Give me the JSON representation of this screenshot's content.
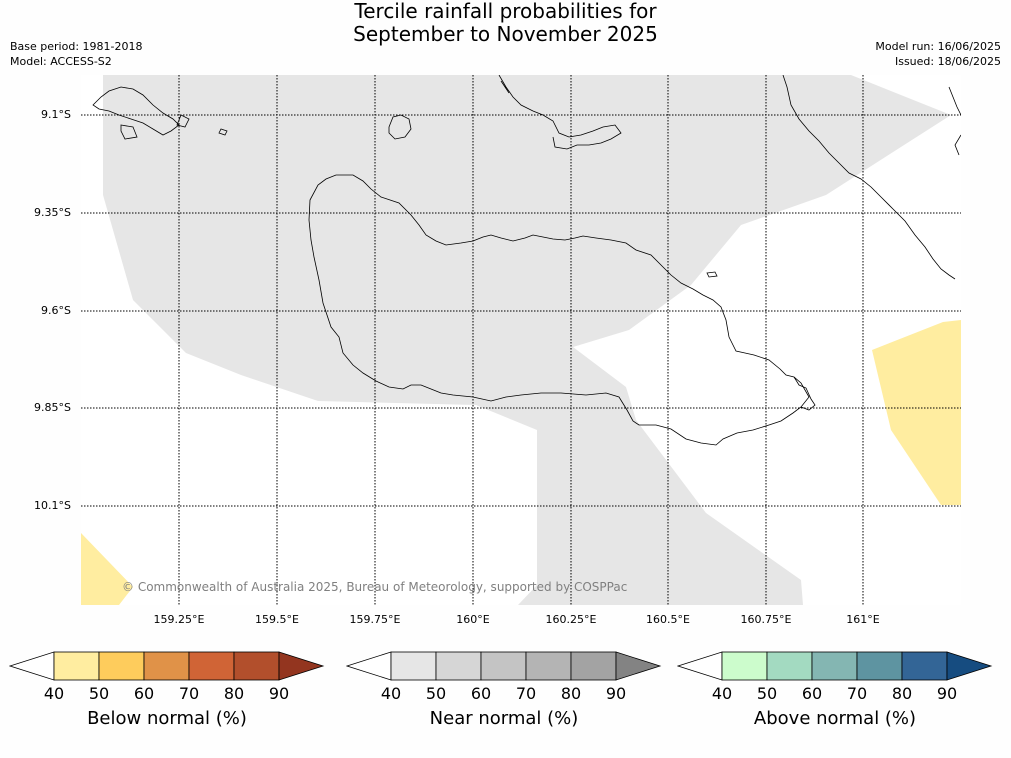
{
  "title": {
    "line1": "Tercile rainfall probabilities for",
    "line2": "September to November 2025"
  },
  "meta": {
    "base_period": "Base period: 1981-2018",
    "model": "Model: ACCESS-S2",
    "model_run": "Model run: 16/06/2025",
    "issued": "Issued: 18/06/2025"
  },
  "map": {
    "lat_labels": [
      "9.1°S",
      "9.35°S",
      "9.6°S",
      "9.85°S",
      "10.1°S"
    ],
    "lon_labels": [
      "159.25°E",
      "159.5°E",
      "159.75°E",
      "160°E",
      "160.25°E",
      "160.5°E",
      "160.75°E",
      "161°E"
    ],
    "copyright": "© Commonwealth of Australia 2025, Bureau of Meteorology, supported by COSPPac",
    "colors": {
      "near_normal_40_50": "#e6e6e6",
      "below_normal_40_50": "#ffeda0",
      "coastline": "#000000"
    }
  },
  "colorbars": [
    {
      "label": "Below normal (%)",
      "ticks": [
        "40",
        "50",
        "60",
        "70",
        "80",
        "90"
      ],
      "colors": [
        "#ffffff",
        "#ffeda0",
        "#fecc5c",
        "#e09248",
        "#d06436",
        "#b24f2c",
        "#93351f"
      ]
    },
    {
      "label": "Near normal (%)",
      "ticks": [
        "40",
        "50",
        "60",
        "70",
        "80",
        "90"
      ],
      "colors": [
        "#ffffff",
        "#e6e6e6",
        "#d6d6d6",
        "#c4c4c4",
        "#b4b4b4",
        "#a3a3a3",
        "#838383"
      ]
    },
    {
      "label": "Above normal (%)",
      "ticks": [
        "40",
        "50",
        "60",
        "70",
        "80",
        "90"
      ],
      "colors": [
        "#ffffff",
        "#ccfccc",
        "#a3dac1",
        "#84b6b2",
        "#5e94a1",
        "#336596",
        "#164c80"
      ]
    }
  ]
}
